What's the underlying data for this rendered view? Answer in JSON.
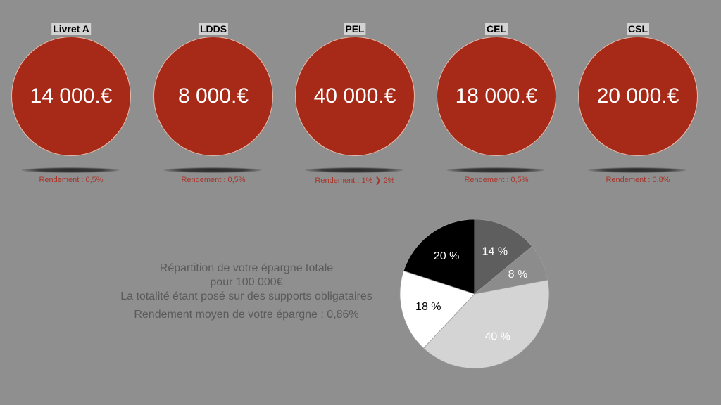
{
  "accounts": [
    {
      "name": "Livret A",
      "amount": "14 000.€",
      "rate": "Rendement : 0,5%"
    },
    {
      "name": "LDDS",
      "amount": "8 000.€",
      "rate": "Rendement : 0,5%"
    },
    {
      "name": "PEL",
      "amount": "40 000.€",
      "rate": "Rendement : 1% ❯ 2%"
    },
    {
      "name": "CEL",
      "amount": "18 000.€",
      "rate": "Rendement : 0,5%"
    },
    {
      "name": "CSL",
      "amount": "20 000.€",
      "rate": "Rendement : 0,8%"
    }
  ],
  "summary": {
    "line1": "Répartition de votre épargne totale",
    "line2": "pour 100 000€",
    "line3": "La totalité étant posé sur des supports obligataires",
    "line4": "Rendement moyen de votre épargne : 0,86%"
  },
  "colors": {
    "background": "#8f8f8f",
    "circle": "#a72a18",
    "rate_text": "#a8352a"
  },
  "chart_data": {
    "type": "pie",
    "title": "Répartition de votre épargne totale pour 100 000€",
    "categories": [
      "Livret A",
      "LDDS",
      "PEL",
      "CEL",
      "CSL"
    ],
    "values": [
      14,
      8,
      40,
      18,
      20
    ],
    "labels": [
      "14 %",
      "8 %",
      "40 %",
      "18 %",
      "20 %"
    ],
    "slice_colors": [
      "#5e5e5e",
      "#8c8c8c",
      "#d4d4d4",
      "#ffffff",
      "#000000"
    ],
    "label_colors": [
      "#ffffff",
      "#ffffff",
      "#ffffff",
      "#000000",
      "#ffffff"
    ],
    "start_angle": "12 o'clock, clockwise",
    "legend": "none"
  }
}
